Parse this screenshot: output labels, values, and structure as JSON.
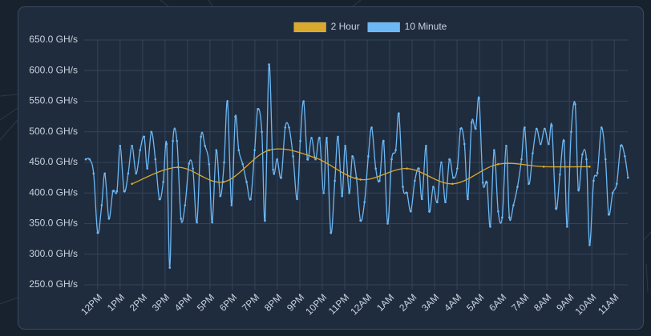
{
  "chart_data": {
    "type": "line",
    "legend": "top",
    "grid": true,
    "xlim": [
      -0.6,
      23.6
    ],
    "xticks": [
      {
        "value": 0,
        "label": "12PM"
      },
      {
        "value": 1,
        "label": "1PM"
      },
      {
        "value": 2,
        "label": "2PM"
      },
      {
        "value": 3,
        "label": "3PM"
      },
      {
        "value": 4,
        "label": "4PM"
      },
      {
        "value": 5,
        "label": "5PM"
      },
      {
        "value": 6,
        "label": "6PM"
      },
      {
        "value": 7,
        "label": "7PM"
      },
      {
        "value": 8,
        "label": "8PM"
      },
      {
        "value": 9,
        "label": "9PM"
      },
      {
        "value": 10,
        "label": "10PM"
      },
      {
        "value": 11,
        "label": "11PM"
      },
      {
        "value": 12,
        "label": "12AM"
      },
      {
        "value": 13,
        "label": "1AM"
      },
      {
        "value": 14,
        "label": "2AM"
      },
      {
        "value": 15,
        "label": "3AM"
      },
      {
        "value": 16,
        "label": "4AM"
      },
      {
        "value": 17,
        "label": "5AM"
      },
      {
        "value": 18,
        "label": "6AM"
      },
      {
        "value": 19,
        "label": "7AM"
      },
      {
        "value": 20,
        "label": "8AM"
      },
      {
        "value": 21,
        "label": "9AM"
      },
      {
        "value": 22,
        "label": "10AM"
      },
      {
        "value": 23,
        "label": "11AM"
      }
    ],
    "ylim": [
      250,
      650
    ],
    "yticks": [
      {
        "value": 250,
        "label": "250.0 GH/s"
      },
      {
        "value": 300,
        "label": "300.0 GH/s"
      },
      {
        "value": 350,
        "label": "350.0 GH/s"
      },
      {
        "value": 400,
        "label": "400.0 GH/s"
      },
      {
        "value": 450,
        "label": "450.0 GH/s"
      },
      {
        "value": 500,
        "label": "500.0 GH/s"
      },
      {
        "value": 550,
        "label": "550.0 GH/s"
      },
      {
        "value": 600,
        "label": "600.0 GH/s"
      },
      {
        "value": 650,
        "label": "650.0 GH/s"
      }
    ],
    "series": [
      {
        "name": "2 Hour",
        "color": "#d9a92e",
        "x": [
          1.53,
          3.57,
          5.6,
          7.63,
          9.66,
          11.7,
          13.77,
          15.8,
          17.83,
          19.86,
          21.9
        ],
        "values": [
          415,
          442,
          418,
          470,
          458,
          422,
          440,
          415,
          447,
          443,
          443
        ]
      },
      {
        "name": "10 Minute",
        "color": "#6cb8f5",
        "x": [
          -0.53,
          -0.36,
          -0.18,
          0,
          0.18,
          0.32,
          0.5,
          0.68,
          0.86,
          1.0,
          1.18,
          1.36,
          1.53,
          1.71,
          1.89,
          2.07,
          2.21,
          2.39,
          2.57,
          2.75,
          2.92,
          3.07,
          3.21,
          3.35,
          3.53,
          3.71,
          3.89,
          4.07,
          4.24,
          4.42,
          4.6,
          4.78,
          4.96,
          5.1,
          5.28,
          5.46,
          5.63,
          5.78,
          5.96,
          6.13,
          6.28,
          6.46,
          6.63,
          6.81,
          6.99,
          7.13,
          7.31,
          7.45,
          7.63,
          7.81,
          7.99,
          8.17,
          8.35,
          8.52,
          8.7,
          8.88,
          9.02,
          9.17,
          9.34,
          9.52,
          9.7,
          9.88,
          10.06,
          10.2,
          10.38,
          10.56,
          10.7,
          10.88,
          11.02,
          11.2,
          11.34,
          11.52,
          11.7,
          11.88,
          12.05,
          12.2,
          12.38,
          12.55,
          12.73,
          12.91,
          13.09,
          13.27,
          13.41,
          13.59,
          13.77,
          13.94,
          14.12,
          14.3,
          14.44,
          14.62,
          14.76,
          14.94,
          15.12,
          15.3,
          15.48,
          15.66,
          15.83,
          16.01,
          16.16,
          16.33,
          16.48,
          16.65,
          16.83,
          16.98,
          17.15,
          17.33,
          17.48,
          17.65,
          17.83,
          18.01,
          18.19,
          18.33,
          18.51,
          18.69,
          18.87,
          19.01,
          19.19,
          19.37,
          19.54,
          19.72,
          19.9,
          20.08,
          20.22,
          20.4,
          20.58,
          20.76,
          20.9,
          21.08,
          21.26,
          21.4,
          21.58,
          21.76,
          21.9,
          22.08,
          22.25,
          22.43,
          22.61,
          22.75,
          22.93,
          23.11,
          23.29,
          23.47,
          23.61
        ],
        "values": [
          455,
          455,
          432,
          335,
          380,
          432,
          358,
          403,
          403,
          477,
          403,
          432,
          477,
          432,
          470,
          492,
          440,
          500,
          455,
          390,
          418,
          480,
          278,
          485,
          485,
          358,
          380,
          448,
          440,
          352,
          492,
          477,
          447,
          352,
          470,
          395,
          450,
          550,
          380,
          525,
          470,
          447,
          418,
          390,
          470,
          537,
          500,
          355,
          610,
          438,
          455,
          425,
          507,
          507,
          460,
          390,
          485,
          550,
          455,
          490,
          455,
          490,
          400,
          490,
          335,
          420,
          492,
          395,
          477,
          400,
          460,
          425,
          355,
          385,
          460,
          507,
          440,
          420,
          485,
          350,
          455,
          470,
          530,
          410,
          400,
          370,
          420,
          440,
          390,
          477,
          370,
          410,
          385,
          450,
          385,
          455,
          425,
          440,
          505,
          480,
          390,
          515,
          505,
          555,
          417,
          417,
          345,
          470,
          370,
          360,
          477,
          360,
          380,
          410,
          455,
          507,
          415,
          465,
          505,
          480,
          505,
          480,
          510,
          375,
          430,
          485,
          345,
          500,
          545,
          405,
          463,
          455,
          315,
          420,
          433,
          507,
          455,
          365,
          400,
          415,
          477,
          460,
          425
        ]
      }
    ]
  }
}
